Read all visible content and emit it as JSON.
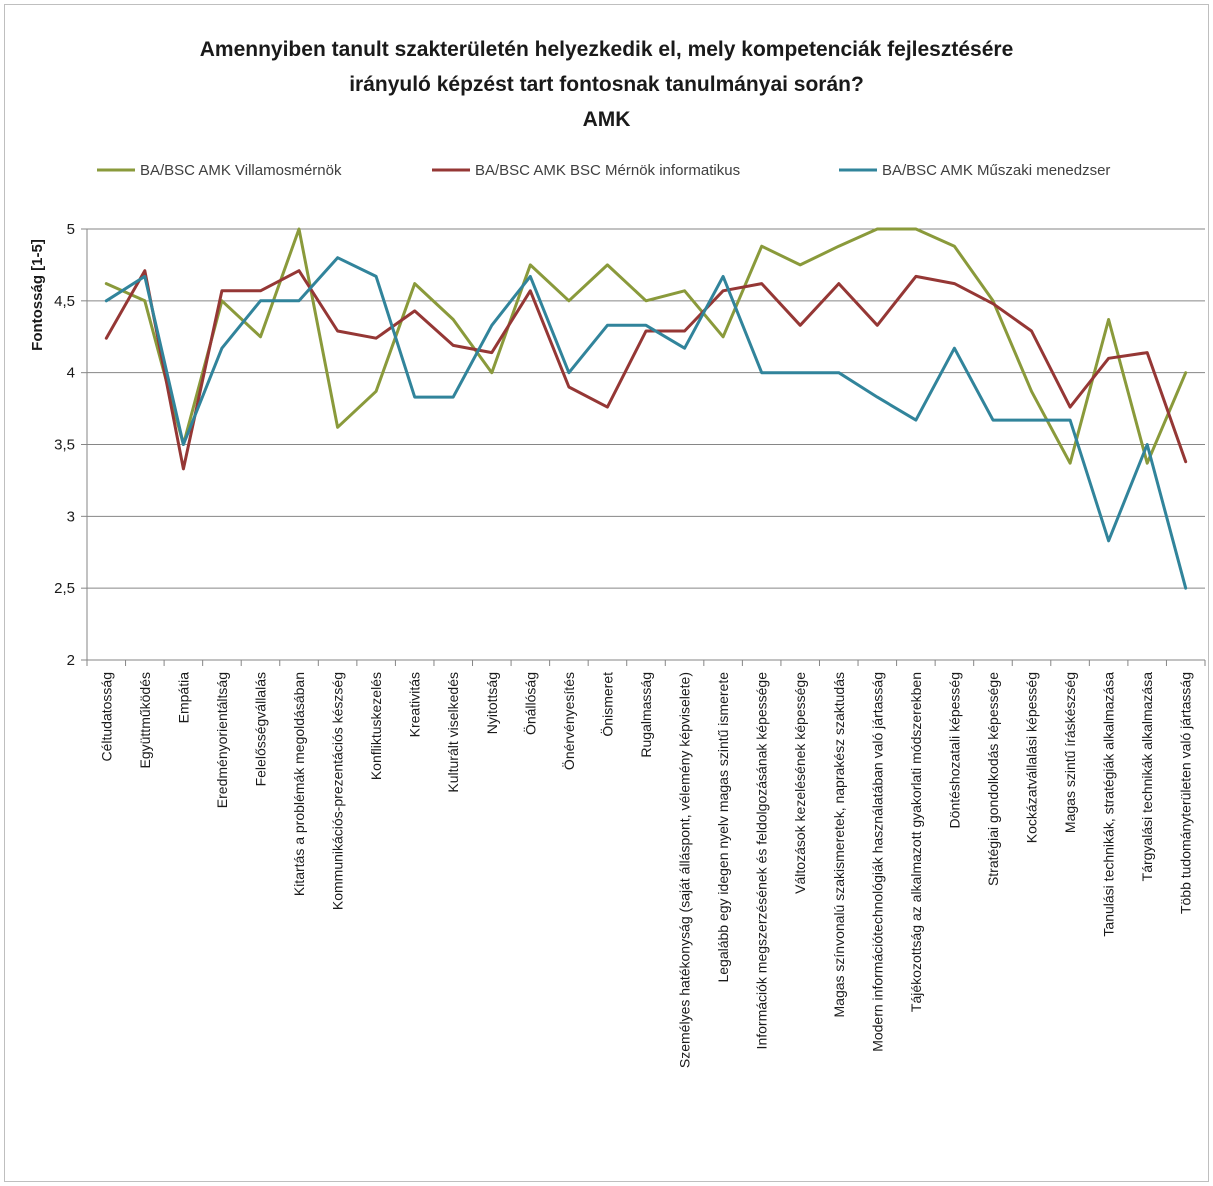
{
  "chart_data": {
    "type": "line",
    "title_lines": [
      "Amennyiben tanult szakterületén helyezkedik el, mely kompetenciák fejlesztésére",
      "irányuló képzést tart fontosnak tanulmányai során?",
      "AMK"
    ],
    "ylabel": "Fontosság [1-5]",
    "xlabel": "",
    "ylim": [
      2,
      5
    ],
    "y_ticks": [
      "2",
      "2,5",
      "3",
      "3,5",
      "4",
      "4,5",
      "5"
    ],
    "grid": true,
    "legend_position": "top",
    "categories": [
      "Céltudatosság",
      "Együttműködés",
      "Empátia",
      "Eredményorientáltság",
      "Felelősségvállalás",
      "Kitartás a problémák megoldásában",
      "Kommunikációs-prezentációs készség",
      "Konfliktuskezelés",
      "Kreativitás",
      "Kulturált viselkedés",
      "Nyitottság",
      "Önállóság",
      "Önérvényesítés",
      "Önismeret",
      "Rugalmasság",
      "Személyes hatékonyság (saját álláspont, vélemény képviselete)",
      "Legalább egy idegen nyelv magas szintű ismerete",
      "Információk megszerzésének és feldolgozásának képessége",
      "Változások kezelésének képessége",
      "Magas színvonalú szakismeretek, naprakész szaktudás",
      "Modern információtechnológiák használatában való jártasság",
      "Tájékozottság az alkalmazott gyakorlati módszerekben",
      "Döntéshozatali képesség",
      "Stratégiai gondolkodás képessége",
      "Kockázatvállalási képesség",
      "Magas szintű íráskészség",
      "Tanulási technikák, stratégiák alkalmazása",
      "Tárgyalási technikák alkalmazása",
      "Több tudományterületen való jártasság"
    ],
    "series": [
      {
        "name": "BA/BSC AMK Villamosmérnök",
        "color": "#8a9a3b",
        "values": [
          4.62,
          4.5,
          3.5,
          4.5,
          4.25,
          5.0,
          3.62,
          3.87,
          4.62,
          4.37,
          4.0,
          4.75,
          4.5,
          4.75,
          4.5,
          4.57,
          4.25,
          4.88,
          4.75,
          4.88,
          5.0,
          5.0,
          4.88,
          4.5,
          3.87,
          3.37,
          4.37,
          3.37,
          4.0
        ]
      },
      {
        "name": "BA/BSC AMK BSC Mérnök informatikus",
        "color": "#953735",
        "values": [
          4.24,
          4.71,
          3.33,
          4.57,
          4.57,
          4.71,
          4.29,
          4.24,
          4.43,
          4.19,
          4.14,
          4.57,
          3.9,
          3.76,
          4.29,
          4.29,
          4.57,
          4.62,
          4.33,
          4.62,
          4.33,
          4.67,
          4.62,
          4.48,
          4.29,
          3.76,
          4.1,
          4.14,
          3.38
        ]
      },
      {
        "name": "BA/BSC AMK Műszaki menedzser",
        "color": "#31849b",
        "values": [
          4.5,
          4.67,
          3.5,
          4.17,
          4.5,
          4.5,
          4.8,
          4.67,
          3.83,
          3.83,
          4.33,
          4.67,
          4.0,
          4.33,
          4.33,
          4.17,
          4.67,
          4.0,
          4.0,
          4.0,
          3.83,
          3.67,
          4.17,
          3.67,
          3.67,
          3.67,
          2.83,
          3.5,
          2.5
        ]
      }
    ]
  }
}
